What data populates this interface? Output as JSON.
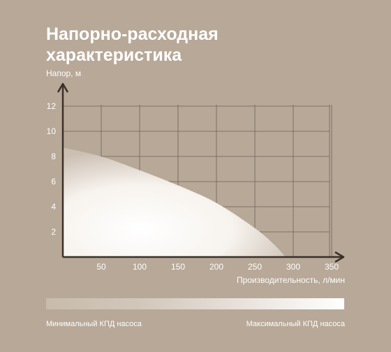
{
  "title": "Напорно-расходная характеристика",
  "colors": {
    "background": "#b7a898",
    "grid": "#6e6257",
    "axis": "#3a3028",
    "curve_fill_inner": "#ffffff",
    "curve_fill_outer": "#d3c8bc",
    "text": "#ffffff"
  },
  "chart_data": {
    "type": "area",
    "title": "Напорно-расходная характеристика",
    "xlabel": "Производительность, л/мин",
    "ylabel": "Напор, м",
    "xlim": [
      0,
      360
    ],
    "ylim": [
      0,
      13
    ],
    "x_ticks": [
      50,
      100,
      150,
      200,
      250,
      300,
      350
    ],
    "y_ticks": [
      2,
      4,
      6,
      8,
      10,
      12
    ],
    "grid": true,
    "series": [
      {
        "x": [
          0,
          50,
          100,
          150,
          200,
          250,
          275,
          290
        ],
        "y": [
          8.7,
          8.0,
          6.9,
          5.7,
          4.3,
          2.3,
          1.0,
          0.0
        ]
      }
    ]
  },
  "legend": {
    "min_label": "Минимальный КПД насоса",
    "max_label": "Максимальный КПД насоса"
  }
}
